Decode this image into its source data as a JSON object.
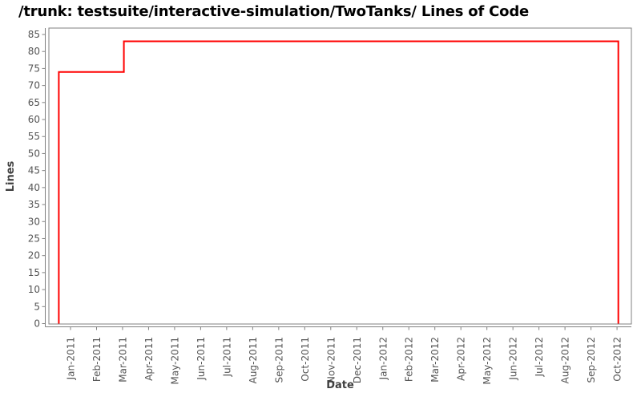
{
  "title": "/trunk: testsuite/interactive-simulation/TwoTanks/ Lines of Code",
  "chart_data": {
    "type": "line",
    "subtype": "step",
    "title": "/trunk: testsuite/interactive-simulation/TwoTanks/ Lines of Code",
    "xlabel": "Date",
    "ylabel": "Lines",
    "x_ticks": [
      "Jan-2011",
      "Feb-2011",
      "Mar-2011",
      "Apr-2011",
      "May-2011",
      "Jun-2011",
      "Jul-2011",
      "Aug-2011",
      "Sep-2011",
      "Oct-2011",
      "Nov-2011",
      "Dec-2011",
      "Jan-2012",
      "Feb-2012",
      "Mar-2012",
      "Apr-2012",
      "May-2012",
      "Jun-2012",
      "Jul-2012",
      "Aug-2012",
      "Sep-2012",
      "Oct-2012"
    ],
    "y_ticks": [
      0,
      5,
      10,
      15,
      20,
      25,
      30,
      35,
      40,
      45,
      50,
      55,
      60,
      65,
      70,
      75,
      80,
      85
    ],
    "ylim": [
      0,
      87
    ],
    "grid": false,
    "legend": "none",
    "colors": {
      "line": "#ff0000",
      "axis": "#808080",
      "tick_label": "#555555",
      "axis_title": "#404040",
      "background": "#ffffff"
    },
    "series": [
      {
        "name": "Lines of Code",
        "color": "#ff0000",
        "points": [
          {
            "x_month": -0.45,
            "y": 0
          },
          {
            "x_month": -0.45,
            "y": 74
          },
          {
            "x_month": 2.05,
            "y": 74
          },
          {
            "x_month": 2.05,
            "y": 83
          },
          {
            "x_month": 21.05,
            "y": 83
          },
          {
            "x_month": 21.05,
            "y": 0
          }
        ],
        "note": "x_month = months after Jan-2011 tick; jumps to 74 lines ~mid-Dec-2010, to 83 lines ~Mar-2011, drops to 0 ~early-Oct-2012"
      }
    ]
  }
}
